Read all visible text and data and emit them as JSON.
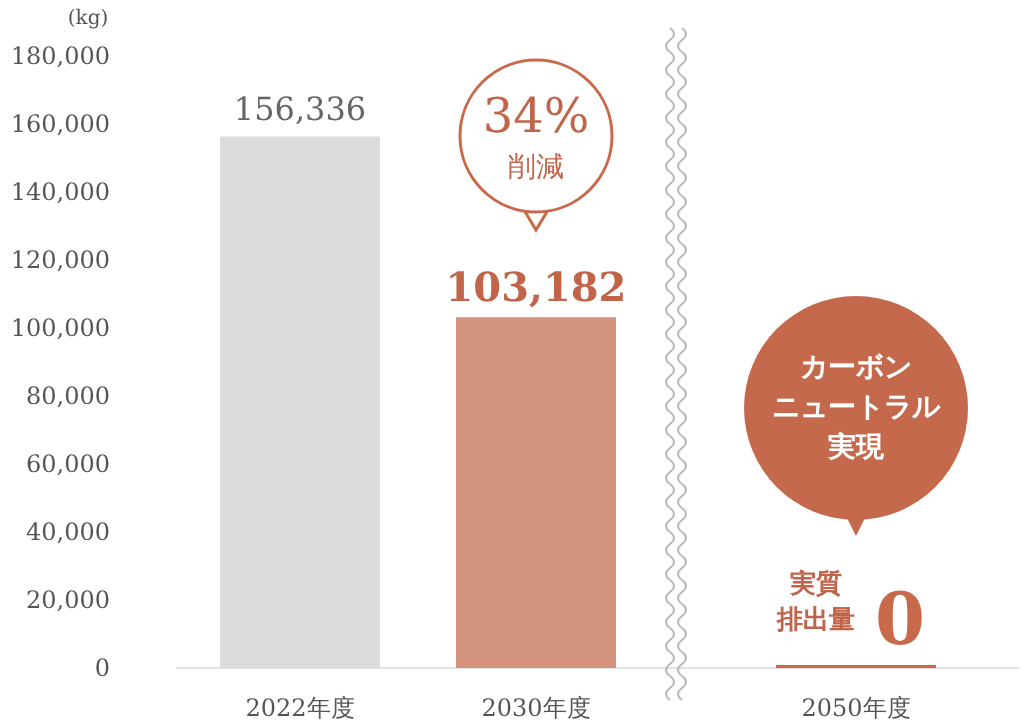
{
  "chart_data": {
    "type": "bar",
    "ylabel": "(kg)",
    "categories": [
      "2022年度",
      "2030年度",
      "2050年度"
    ],
    "values": [
      156336,
      103182,
      0
    ],
    "colors": [
      "#dcdcdc",
      "#d4937c",
      "#c8694a"
    ],
    "value_labels": [
      "156,336",
      "103,182",
      "0"
    ],
    "ylim": [
      0,
      180000
    ],
    "yticks": [
      0,
      {
        "value": 20000,
        "label": "20,000"
      },
      {
        "value": 40000,
        "label": "40,000"
      },
      {
        "value": 60000,
        "label": "60,000"
      },
      {
        "value": 80000,
        "label": "80,000"
      },
      {
        "value": 100000,
        "label": "100,000"
      },
      {
        "value": 120000,
        "label": "120,000"
      },
      {
        "value": 140000,
        "label": "140,000"
      },
      {
        "value": 160000,
        "label": "160,000"
      },
      {
        "value": 180000,
        "label": "180,000"
      }
    ],
    "annotations": [
      "34%削減",
      "カーボンニュートラル実現",
      "実質排出量"
    ]
  }
}
